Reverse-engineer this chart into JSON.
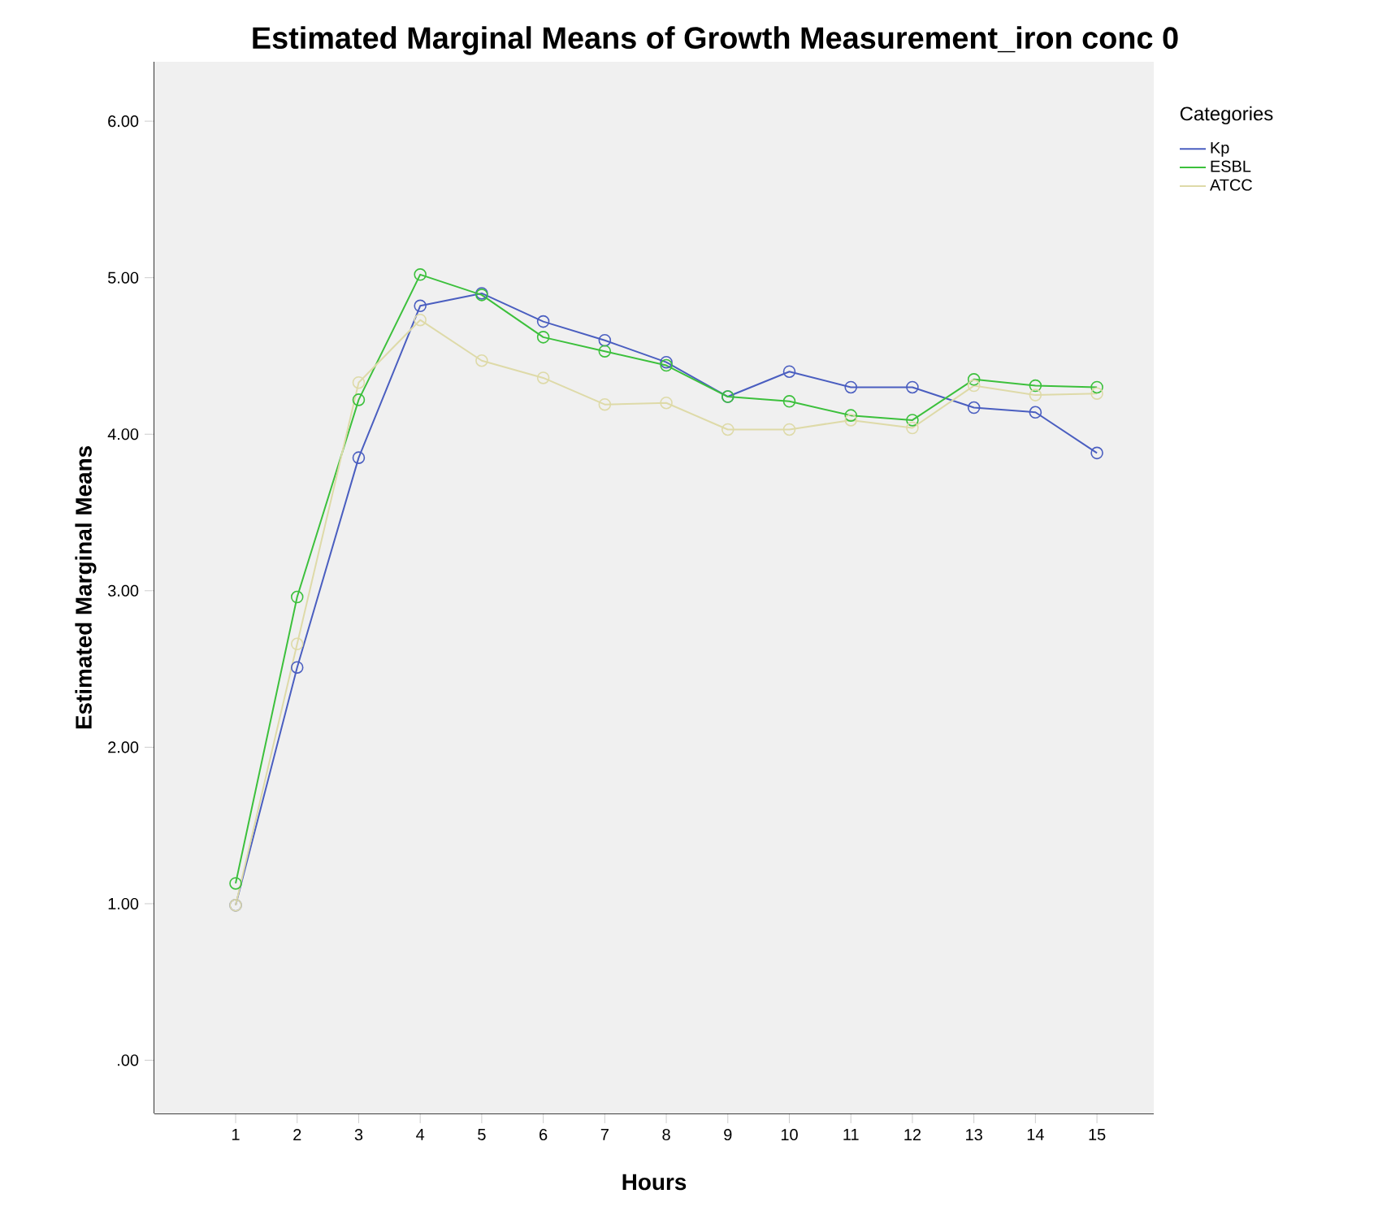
{
  "chart_data": {
    "type": "line",
    "title": "Estimated Marginal Means of Growth Measurement_iron conc 0",
    "xlabel": "Hours",
    "ylabel": "Estimated Marginal Means",
    "legend_title": "Categories",
    "categories": [
      "1",
      "2",
      "3",
      "4",
      "5",
      "6",
      "7",
      "8",
      "9",
      "10",
      "11",
      "12",
      "13",
      "14",
      "15"
    ],
    "series": [
      {
        "name": "Kp",
        "color": "#4a5ec0",
        "values": [
          0.99,
          2.51,
          3.85,
          4.82,
          4.9,
          4.72,
          4.6,
          4.46,
          4.24,
          4.4,
          4.3,
          4.3,
          4.17,
          4.14,
          3.88
        ]
      },
      {
        "name": "ESBL",
        "color": "#3cc03c",
        "values": [
          1.13,
          2.96,
          4.22,
          5.02,
          4.89,
          4.62,
          4.53,
          4.44,
          4.24,
          4.21,
          4.12,
          4.09,
          4.35,
          4.31,
          4.3
        ]
      },
      {
        "name": "ATCC",
        "color": "#dedaa8",
        "values": [
          0.99,
          2.66,
          4.33,
          4.73,
          4.47,
          4.36,
          4.19,
          4.2,
          4.03,
          4.03,
          4.09,
          4.04,
          4.31,
          4.25,
          4.26
        ]
      }
    ],
    "ylim": [
      -0.34,
      6.38
    ],
    "yticks": [
      {
        "value": 0,
        "label": ".00"
      },
      {
        "value": 1,
        "label": "1.00"
      },
      {
        "value": 2,
        "label": "2.00"
      },
      {
        "value": 3,
        "label": "3.00"
      },
      {
        "value": 4,
        "label": "4.00"
      },
      {
        "value": 5,
        "label": "5.00"
      },
      {
        "value": 6,
        "label": "6.00"
      }
    ],
    "legend": "top right",
    "marker": "circle",
    "line_style": "solid"
  }
}
